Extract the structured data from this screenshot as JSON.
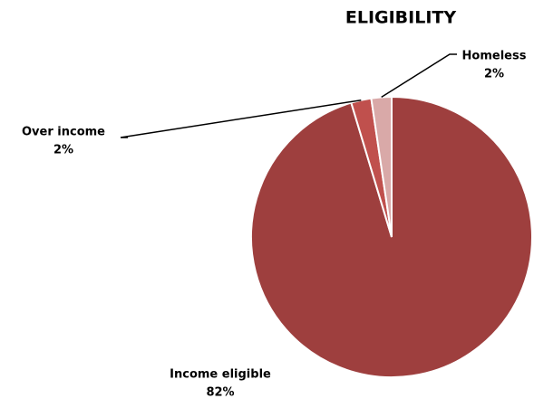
{
  "chart_data": {
    "type": "pie",
    "title": "ELIGIBILITY",
    "categories": [
      "Income eligible",
      "Over income",
      "Homeless"
    ],
    "values": [
      82,
      2,
      2
    ],
    "value_labels": [
      "82%",
      "2%",
      "2%"
    ],
    "colors": [
      "#9e3f3e",
      "#c0504d",
      "#d9a9a8"
    ]
  }
}
